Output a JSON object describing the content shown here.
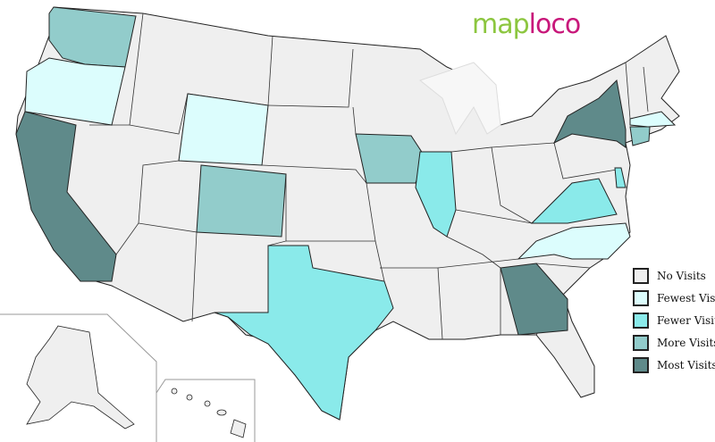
{
  "logo": {
    "part1": "map",
    "part2": "loco"
  },
  "colors": {
    "none": "#efefef",
    "fewest": "#dcfdfd",
    "fewer": "#8aeaea",
    "more": "#92cccb",
    "most": "#5f8a8a",
    "border": "#222222"
  },
  "legend": [
    {
      "key": "none",
      "label": "No Visits"
    },
    {
      "key": "fewest",
      "label": "Fewest Visits"
    },
    {
      "key": "fewer",
      "label": "Fewer Visits"
    },
    {
      "key": "more",
      "label": "More Visits"
    },
    {
      "key": "most",
      "label": "Most Visits"
    }
  ],
  "states": {
    "WA": "more",
    "OR": "fewest",
    "CA": "most",
    "WY": "fewest",
    "CO": "more",
    "IA": "more",
    "IL": "fewer",
    "TX": "fewer",
    "VA": "fewer",
    "NC": "fewest",
    "GA": "most",
    "NY": "most",
    "MA": "fewest",
    "CT": "more",
    "DE": "fewer"
  }
}
